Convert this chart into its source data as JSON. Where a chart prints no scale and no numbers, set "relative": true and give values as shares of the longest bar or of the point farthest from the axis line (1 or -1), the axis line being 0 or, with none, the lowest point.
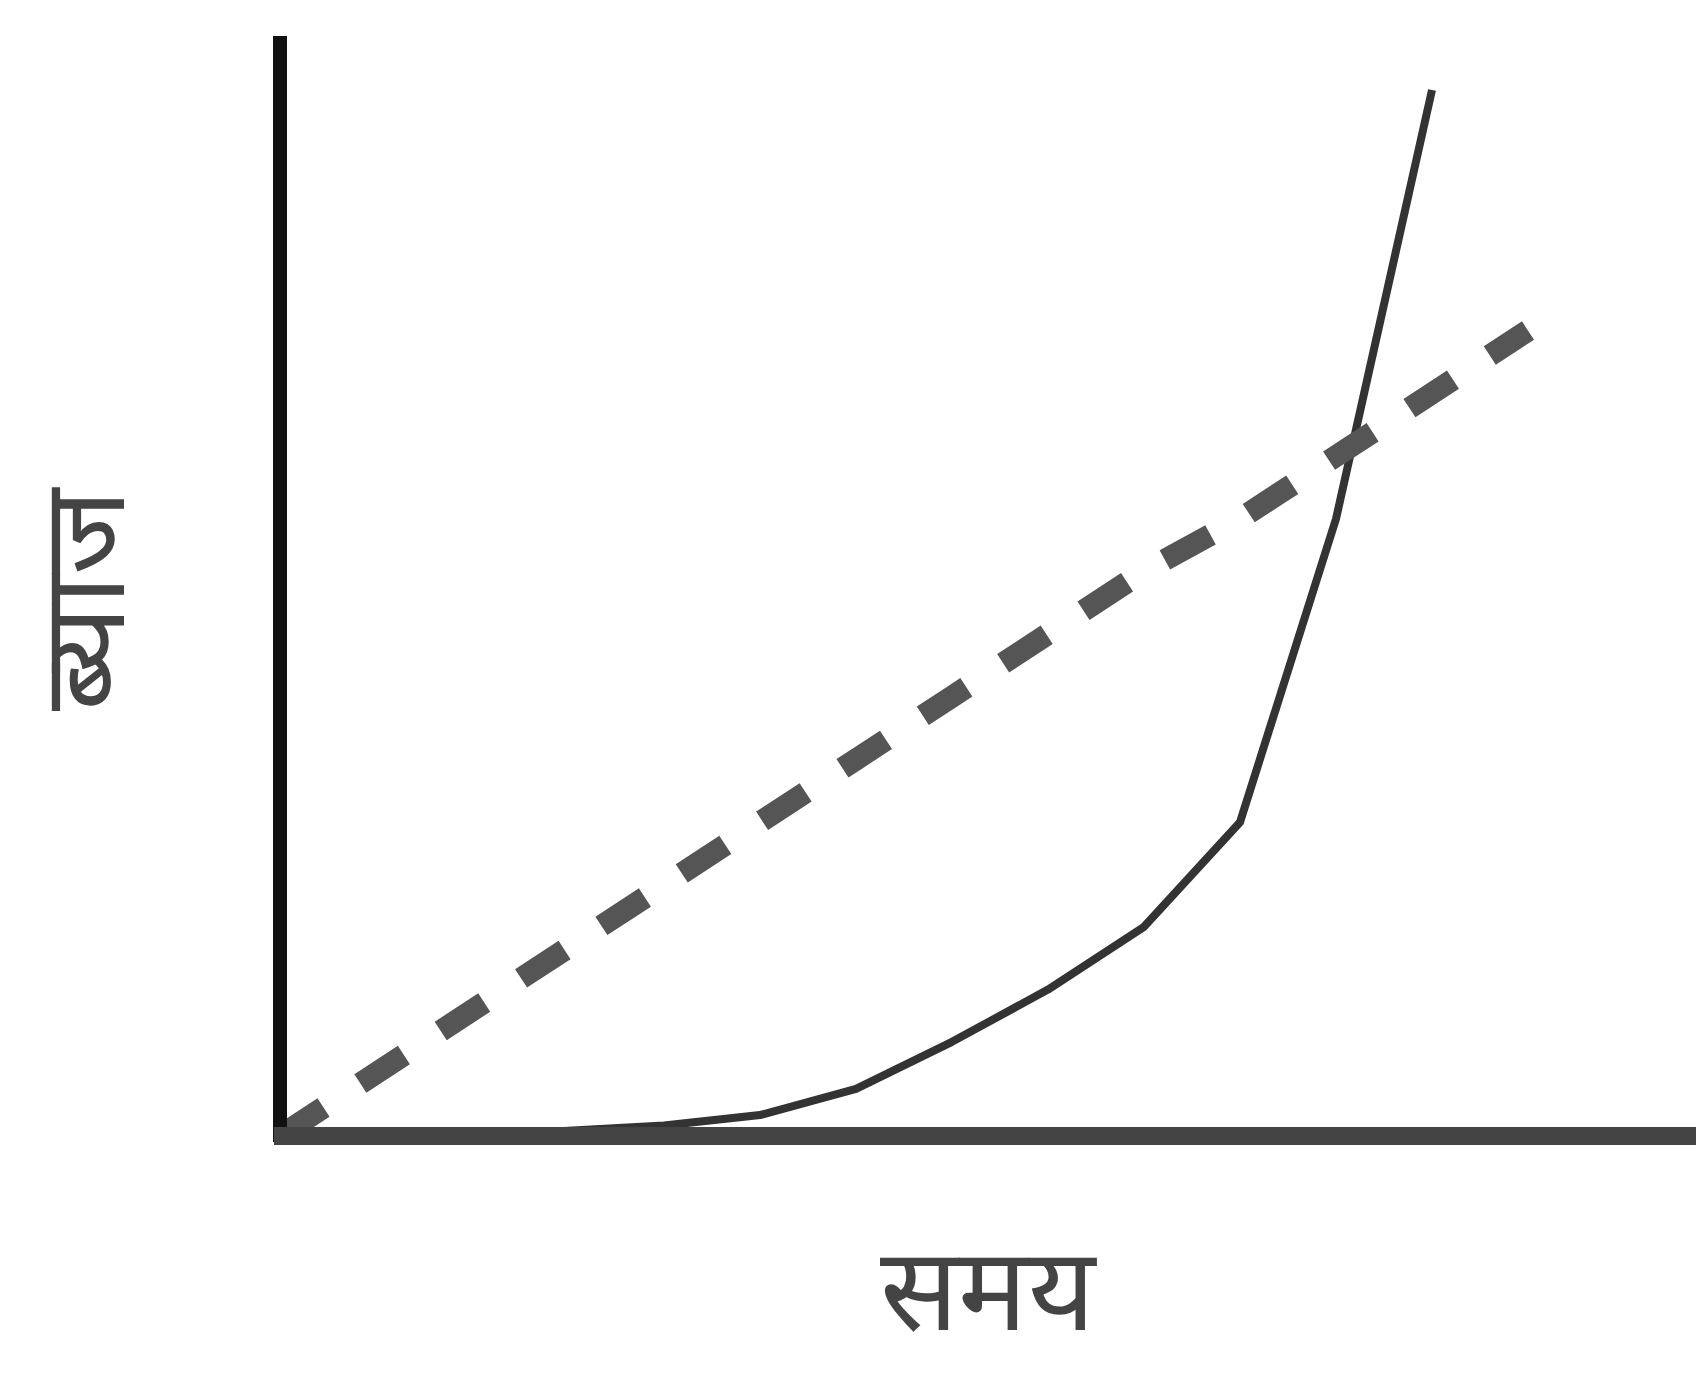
{
  "chart_data": {
    "type": "line",
    "relative": true,
    "xlabel": "समय",
    "ylabel": "ब्याज",
    "grid": false,
    "categories": [
      null,
      null,
      null,
      null,
      null,
      null,
      null,
      null,
      null,
      null,
      null,
      null,
      null,
      null,
      null
    ],
    "series": [
      {
        "color": "#333333",
        "line_style": "solid",
        "values": [
          0,
          0,
          0,
          0.005,
          0.01,
          0.02,
          0.045,
          0.09,
          0.14,
          0.2,
          0.3,
          0.59,
          1.0,
          null,
          null
        ]
      },
      {
        "color": "#555555",
        "line_style": "dashed",
        "values": [
          0,
          0.06,
          0.12,
          0.18,
          0.24,
          0.3,
          0.36,
          0.42,
          0.48,
          0.54,
          0.59,
          0.65,
          0.71,
          0.77,
          null
        ]
      }
    ]
  }
}
